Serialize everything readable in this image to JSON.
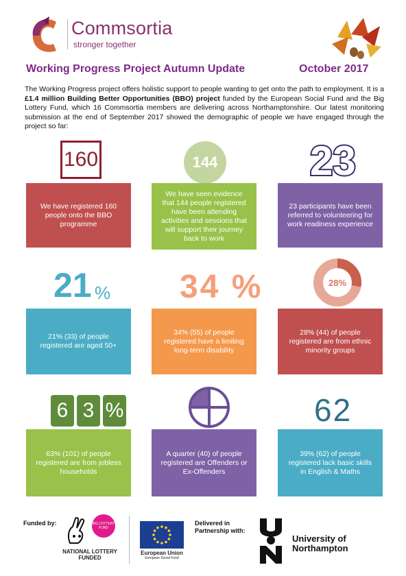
{
  "brand": {
    "name": "Commsortia",
    "tagline": "stronger together",
    "color": "#8b2f6e"
  },
  "header": {
    "title": "Working Progress Project Autumn Update",
    "date": "October 2017"
  },
  "intro": {
    "part1": "The Working Progress project offers holistic support to people wanting to get onto the path to employment. It is a ",
    "bold": "£1.4 million Building Better Opportunities (BBO) project",
    "part2": " funded by the European Social Fund and the Big Lottery Fund, which 16 Commsortia members are delivering across Northamptonshire.  Our latest monitoring submission at the end of September 2017 showed the demographic of people we have engaged through the project so far:"
  },
  "stats": [
    {
      "graphic": "160",
      "text": "We have registered 160 people onto the BBO programme",
      "color": "#c0504f"
    },
    {
      "graphic": "144",
      "text": "We have seen evidence that 144 people registered have been attending activities and sessions that will support their journey back to work",
      "color": "#98c24a"
    },
    {
      "graphic": "23",
      "text": "23 participants have been referred to volunteering for work readiness experience",
      "color": "#7e62a5"
    },
    {
      "graphic": "21",
      "graphic_suffix": "%",
      "text": "21% (33) of people registered are aged 50+",
      "color": "#4bacc6"
    },
    {
      "graphic": "34 %",
      "text": "34% (55) of people registered have a limiting long-term disability",
      "color": "#f4984c"
    },
    {
      "graphic": "28%",
      "donut_fraction": 0.28,
      "text": "28% (44) of people registered are from ethnic minority groups",
      "color": "#c0504f"
    },
    {
      "graphic_digits": [
        "6",
        "3",
        "%"
      ],
      "text": "63% (101) of people registered are from jobless households",
      "color": "#98c24a"
    },
    {
      "graphic_icon": "quarter-circle-icon",
      "quarter_fraction": 0.25,
      "text": "A quarter (40) of people registered are Offenders or Ex-Offenders",
      "color": "#7e62a5"
    },
    {
      "graphic": "62",
      "text": "39% (62) of people registered lack basic skills in English & Maths",
      "color": "#4bacc6"
    }
  ],
  "footer": {
    "funded_by": "Funded by:",
    "nl_badge": "BIG LOTTERY FUND",
    "nl_text": "NATIONAL LOTTERY FUNDED",
    "eu_name": "European Union",
    "eu_sub": "European Social Fund",
    "delivered": "Delivered in Partnership with:",
    "uon_name": "University of Northampton"
  }
}
